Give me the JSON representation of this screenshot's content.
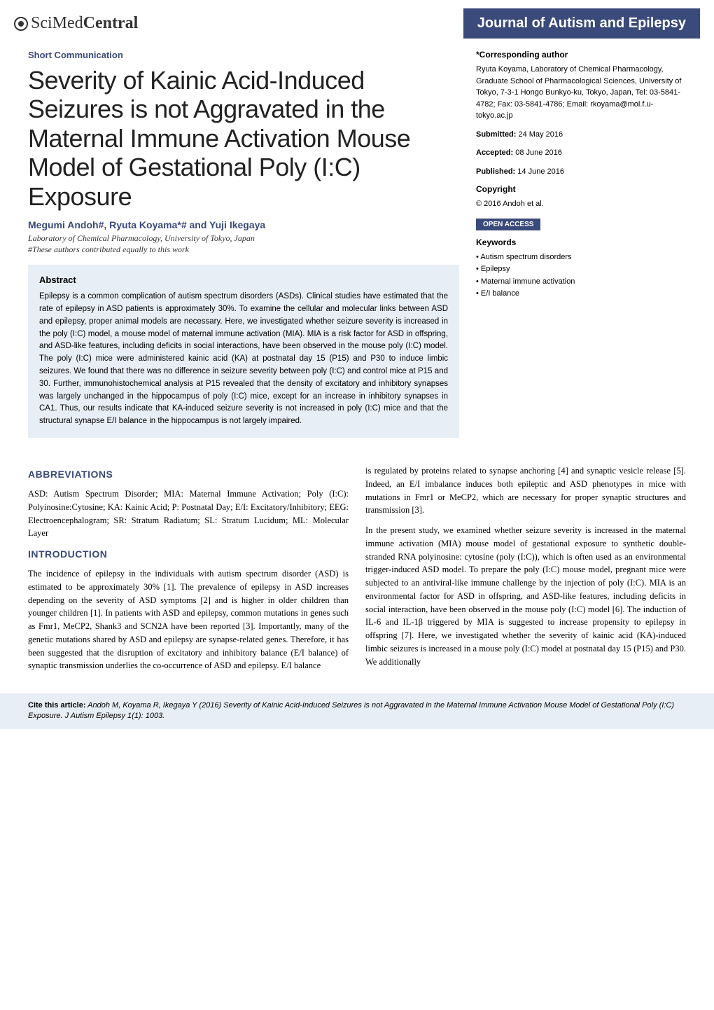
{
  "header": {
    "logo_prefix": "SciMed",
    "logo_suffix": "Central",
    "journal_name": "Journal of Autism and Epilepsy"
  },
  "article": {
    "type_label": "Short Communication",
    "title": "Severity of Kainic Acid-Induced Seizures is not Aggravated in the Maternal Immune Activation Mouse Model of Gestational Poly (I:C) Exposure",
    "authors": "Megumi Andoh#, Ryuta Koyama*# and Yuji Ikegaya",
    "affiliation_1": "Laboratory of Chemical Pharmacology, University of Tokyo, Japan",
    "affiliation_2": "#These authors contributed equally to this work"
  },
  "abstract": {
    "heading": "Abstract",
    "text": "Epilepsy is a common complication of autism spectrum disorders (ASDs). Clinical studies have estimated that the rate of epilepsy in ASD patients is approximately 30%. To examine the cellular and molecular links between ASD and epilepsy, proper animal models are necessary. Here, we investigated whether seizure severity is increased in the poly (I:C) model, a mouse model of maternal immune activation (MIA). MIA is a risk factor for ASD in offspring, and ASD-like features, including deficits in social interactions, have been observed in the mouse poly (I:C) model. The poly (I:C) mice were administered kainic acid (KA) at postnatal day 15 (P15) and P30 to induce limbic seizures. We found that there was no difference in seizure severity between poly (I:C) and control mice at P15 and 30. Further, immunohistochemical analysis at P15 revealed that the density of excitatory and inhibitory synapses was largely unchanged in the hippocampus of poly (I:C) mice, except for an increase in inhibitory synapses in CA1. Thus, our results indicate that KA-induced seizure severity is not increased in poly (I:C) mice and that the structural synapse E/I balance in the hippocampus is not largely impaired."
  },
  "meta": {
    "corresponding_label": "*Corresponding author",
    "corresponding_text": "Ryuta Koyama, Laboratory of Chemical Pharmacology, Graduate School of Pharmacological Sciences, University of Tokyo, 7-3-1 Hongo Bunkyo-ku, Tokyo, Japan, Tel: 03-5841-4782; Fax: 03-5841-4786; Email: rkoyama@mol.f.u-tokyo.ac.jp",
    "submitted_label": "Submitted:",
    "submitted_value": " 24 May 2016",
    "accepted_label": "Accepted:",
    "accepted_value": " 08 June 2016",
    "published_label": "Published:",
    "published_value": " 14 June 2016",
    "copyright_label": "Copyright",
    "copyright_value": "© 2016 Andoh et al.",
    "open_access": "OPEN ACCESS",
    "keywords_label": "Keywords",
    "keywords": [
      "Autism spectrum disorders",
      "Epilepsy",
      "Maternal immune activation",
      "E/I balance"
    ]
  },
  "body": {
    "abbrev_head": "ABBREVIATIONS",
    "abbrev_text": "ASD: Autism Spectrum Disorder; MIA: Maternal Immune Activation; Poly (I:C): Polyinosine:Cytosine; KA: Kainic Acid; P: Postnatal Day; E/I: Excitatory/Inhibitory; EEG: Electroencephalogram; SR: Stratum Radiatum; SL: Stratum Lucidum; ML: Molecular Layer",
    "intro_head": "INTRODUCTION",
    "intro_p1": "The incidence of epilepsy in the individuals with autism spectrum disorder (ASD) is estimated to be approximately 30% [1]. The prevalence of epilepsy in ASD increases depending on the severity of ASD symptoms [2] and is higher in older children than younger children [1]. In patients with ASD and epilepsy, common mutations in genes such as Fmr1, MeCP2, Shank3 and SCN2A have been reported [3]. Importantly, many of the genetic mutations shared by ASD and epilepsy are synapse-related genes. Therefore, it has been suggested that the disruption of excitatory and inhibitory balance (E/I balance) of synaptic transmission underlies the co-occurrence of ASD and epilepsy. E/I balance",
    "intro_p2": "is regulated by proteins related to synapse anchoring [4] and synaptic vesicle release [5]. Indeed, an E/I imbalance induces both epileptic and ASD phenotypes in mice with mutations in Fmr1 or MeCP2, which are necessary for proper synaptic structures and transmission [3].",
    "intro_p3": "In the present study, we examined whether seizure severity is increased in the maternal immune activation (MIA) mouse model of gestational exposure to synthetic double-stranded RNA polyinosine: cytosine (poly (I:C)), which is often used as an environmental trigger-induced ASD model. To prepare the poly (I:C) mouse model, pregnant mice were subjected to an antiviral-like immune challenge by the injection of poly (I:C). MIA is an environmental factor for ASD in offspring, and ASD-like features, including deficits in social interaction, have been observed in the mouse poly (I:C) model [6]. The induction of IL-6 and IL-1β triggered by MIA is suggested to increase propensity to epilepsy in offspring [7]. Here, we investigated whether the severity of kainic acid (KA)-induced limbic seizures is increased in a mouse poly (I:C) model at postnatal day 15 (P15) and P30. We additionally"
  },
  "citation": {
    "label": "Cite this article:",
    "text": " Andoh M, Koyama R, Ikegaya Y (2016) Severity of Kainic Acid-Induced Seizures is not Aggravated in the Maternal Immune Activation Mouse Model of Gestational Poly (I:C) Exposure. J Autism Epilepsy 1(1): 1003."
  },
  "colors": {
    "brand_blue": "#3a4a7a",
    "abstract_bg": "#e8eef5",
    "text": "#000000",
    "background": "#ffffff"
  }
}
